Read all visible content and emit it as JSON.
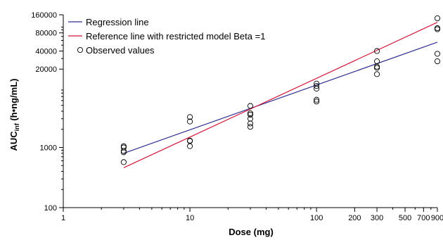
{
  "chart_data": {
    "type": "scatter",
    "x_scale": "log",
    "y_scale": "log",
    "xlim": [
      1,
      900
    ],
    "ylim": [
      100,
      160000
    ],
    "xlabel": "Dose (mg)",
    "ylabel_main": "AUC",
    "ylabel_sub": "inf",
    "ylabel_unit": " (h•ng/mL)",
    "x_ticks": [
      1,
      10,
      100,
      200,
      300,
      500,
      700,
      900
    ],
    "x_minor_ticks": [
      2,
      3,
      4,
      5,
      6,
      7,
      8,
      9,
      20,
      30,
      40,
      50,
      60,
      70,
      80,
      90,
      400,
      600,
      800
    ],
    "y_ticks": [
      100,
      1000,
      20000,
      40000,
      80000,
      160000
    ],
    "y_minor_ticks": [
      200,
      300,
      400,
      500,
      600,
      700,
      800,
      900,
      2000,
      3000,
      4000,
      5000,
      6000,
      7000,
      8000,
      9000,
      30000,
      50000,
      60000,
      70000,
      90000,
      100000
    ],
    "legend_position": "top-left",
    "series": [
      {
        "name": "Regression line",
        "kind": "line",
        "color": "#2e2f8f",
        "x": [
          3,
          900
        ],
        "y": [
          800,
          56000
        ]
      },
      {
        "name": "Reference line with restricted model Beta =1",
        "kind": "line",
        "color": "#d2173a",
        "x": [
          3,
          900
        ],
        "y": [
          460,
          120000
        ]
      },
      {
        "name": "Observed values",
        "kind": "scatter",
        "color": "#000000",
        "x": [
          3,
          3,
          3,
          3,
          3,
          10,
          10,
          10,
          10,
          10,
          30,
          30,
          30,
          30,
          30,
          30,
          100,
          100,
          100,
          100,
          100,
          300,
          300,
          300,
          300,
          300,
          900,
          900,
          900,
          900,
          900
        ],
        "y": [
          1050,
          1000,
          870,
          830,
          570,
          3200,
          2700,
          1300,
          1280,
          1050,
          4900,
          3700,
          3500,
          3000,
          2500,
          2200,
          11500,
          10500,
          9500,
          6200,
          5800,
          40000,
          27000,
          22000,
          21000,
          16500,
          140000,
          96000,
          92000,
          36000,
          27000
        ]
      }
    ]
  }
}
